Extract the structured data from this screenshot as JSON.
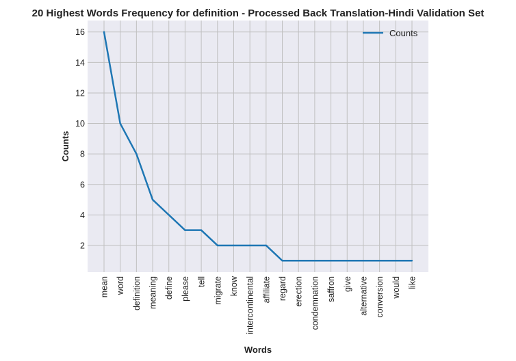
{
  "chart_data": {
    "type": "line",
    "title": "20 Highest Words Frequency for definition - Processed Back Translation-Hindi Validation Set",
    "xlabel": "Words",
    "ylabel": "Counts",
    "categories": [
      "mean",
      "word",
      "definition",
      "meaning",
      "define",
      "please",
      "tell",
      "migrate",
      "know",
      "intercontinental",
      "affiliate",
      "regard",
      "erection",
      "condemnation",
      "saffron",
      "give",
      "alternative",
      "conversion",
      "would",
      "like"
    ],
    "series": [
      {
        "name": "Counts",
        "values": [
          16,
          10,
          8,
          5,
          4,
          3,
          3,
          2,
          2,
          2,
          2,
          1,
          1,
          1,
          1,
          1,
          1,
          1,
          1,
          1
        ],
        "color": "#1f77b4"
      }
    ],
    "yticks": [
      2,
      4,
      6,
      8,
      10,
      12,
      14,
      16
    ],
    "ylim": [
      0.25,
      16.75
    ],
    "grid": true,
    "legend_position": "top-right",
    "background_color": "#eaeaf2",
    "grid_color": "#c0c0c0"
  }
}
